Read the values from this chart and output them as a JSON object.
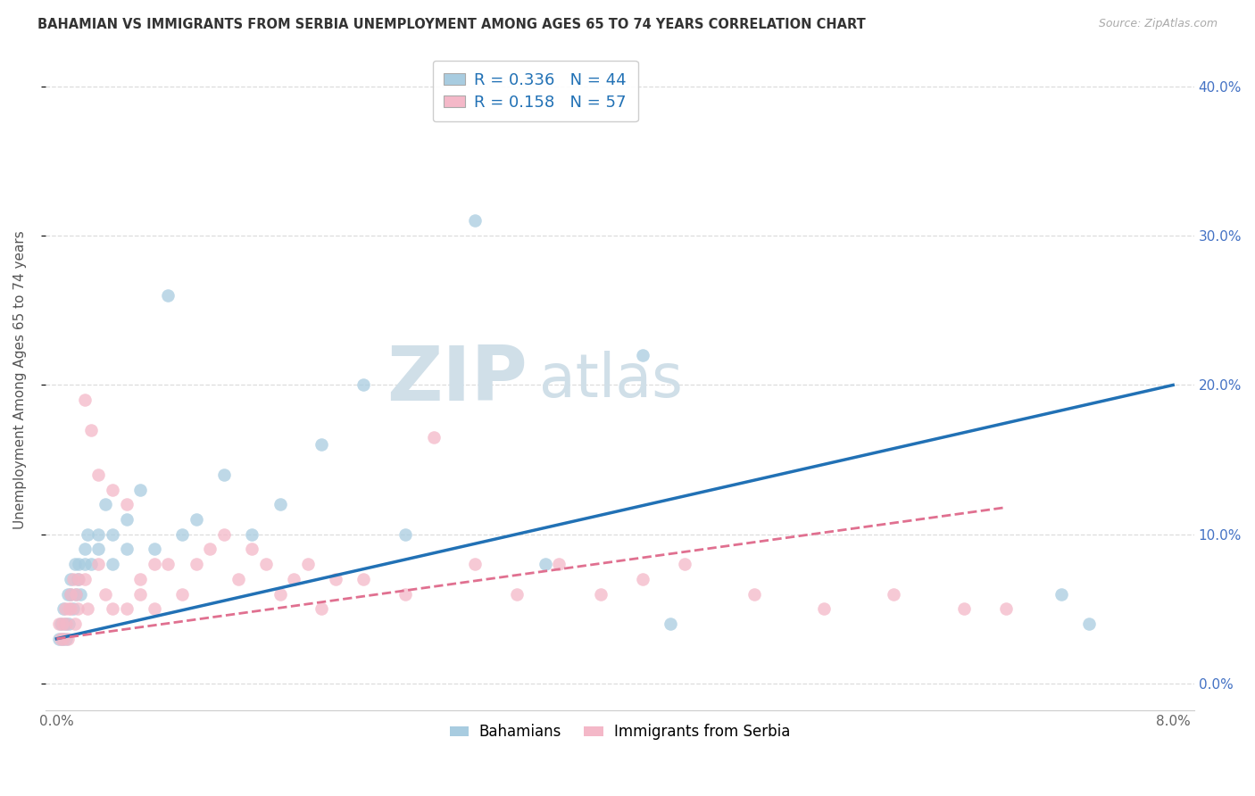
{
  "title": "BAHAMIAN VS IMMIGRANTS FROM SERBIA UNEMPLOYMENT AMONG AGES 65 TO 74 YEARS CORRELATION CHART",
  "source": "Source: ZipAtlas.com",
  "ylabel_label": "Unemployment Among Ages 65 to 74 years",
  "legend_group1": "Bahamians",
  "legend_group2": "Immigrants from Serbia",
  "bahamian_R": "0.336",
  "bahamian_N": "44",
  "serbia_R": "0.158",
  "serbia_N": "57",
  "blue_scatter": "#a8cce0",
  "pink_scatter": "#f4b8c8",
  "blue_line": "#2171b5",
  "pink_line": "#e07090",
  "watermark_color": "#d0dfe8",
  "title_color": "#333333",
  "source_color": "#aaaaaa",
  "tick_color": "#666666",
  "right_tick_color": "#4472c4",
  "ylabel_color": "#555555",
  "grid_color": "#dddddd",
  "bottom_spine_color": "#cccccc",
  "xlim": [
    -0.0008,
    0.0815
  ],
  "ylim": [
    -0.018,
    0.425
  ],
  "xticks": [
    0.0,
    0.02,
    0.04,
    0.06,
    0.08
  ],
  "yticks": [
    0.0,
    0.1,
    0.2,
    0.3,
    0.4
  ],
  "xtick_labels": [
    "0.0%",
    "",
    "",
    "",
    "8.0%"
  ],
  "ytick_labels": [
    "0.0%",
    "10.0%",
    "20.0%",
    "30.0%",
    "40.0%"
  ],
  "blue_trend_x": [
    0.0,
    0.08
  ],
  "blue_trend_y": [
    0.03,
    0.2
  ],
  "pink_trend_x": [
    0.0,
    0.068
  ],
  "pink_trend_y": [
    0.03,
    0.118
  ],
  "bahamian_x": [
    0.0002,
    0.0003,
    0.0004,
    0.0005,
    0.0006,
    0.0007,
    0.0008,
    0.0009,
    0.001,
    0.001,
    0.0012,
    0.0013,
    0.0014,
    0.0015,
    0.0016,
    0.0017,
    0.002,
    0.002,
    0.0022,
    0.0025,
    0.003,
    0.003,
    0.0035,
    0.004,
    0.004,
    0.005,
    0.005,
    0.006,
    0.007,
    0.008,
    0.009,
    0.01,
    0.012,
    0.014,
    0.016,
    0.019,
    0.022,
    0.025,
    0.03,
    0.035,
    0.042,
    0.044,
    0.072,
    0.074
  ],
  "bahamian_y": [
    0.03,
    0.04,
    0.03,
    0.05,
    0.04,
    0.03,
    0.06,
    0.04,
    0.06,
    0.07,
    0.05,
    0.08,
    0.06,
    0.07,
    0.08,
    0.06,
    0.08,
    0.09,
    0.1,
    0.08,
    0.1,
    0.09,
    0.12,
    0.1,
    0.08,
    0.11,
    0.09,
    0.13,
    0.09,
    0.26,
    0.1,
    0.11,
    0.14,
    0.1,
    0.12,
    0.16,
    0.2,
    0.1,
    0.31,
    0.08,
    0.22,
    0.04,
    0.06,
    0.04
  ],
  "serbia_x": [
    0.0002,
    0.0003,
    0.0004,
    0.0005,
    0.0006,
    0.0007,
    0.0008,
    0.0009,
    0.001,
    0.001,
    0.0012,
    0.0013,
    0.0014,
    0.0015,
    0.0016,
    0.002,
    0.002,
    0.0022,
    0.0025,
    0.003,
    0.003,
    0.0035,
    0.004,
    0.004,
    0.005,
    0.005,
    0.006,
    0.006,
    0.007,
    0.007,
    0.008,
    0.009,
    0.01,
    0.011,
    0.012,
    0.013,
    0.014,
    0.015,
    0.016,
    0.017,
    0.018,
    0.019,
    0.02,
    0.022,
    0.025,
    0.027,
    0.03,
    0.033,
    0.036,
    0.039,
    0.042,
    0.045,
    0.05,
    0.055,
    0.06,
    0.065,
    0.068
  ],
  "serbia_y": [
    0.04,
    0.03,
    0.04,
    0.03,
    0.05,
    0.04,
    0.03,
    0.05,
    0.05,
    0.06,
    0.07,
    0.04,
    0.06,
    0.05,
    0.07,
    0.07,
    0.19,
    0.05,
    0.17,
    0.08,
    0.14,
    0.06,
    0.13,
    0.05,
    0.12,
    0.05,
    0.07,
    0.06,
    0.08,
    0.05,
    0.08,
    0.06,
    0.08,
    0.09,
    0.1,
    0.07,
    0.09,
    0.08,
    0.06,
    0.07,
    0.08,
    0.05,
    0.07,
    0.07,
    0.06,
    0.165,
    0.08,
    0.06,
    0.08,
    0.06,
    0.07,
    0.08,
    0.06,
    0.05,
    0.06,
    0.05,
    0.05
  ]
}
